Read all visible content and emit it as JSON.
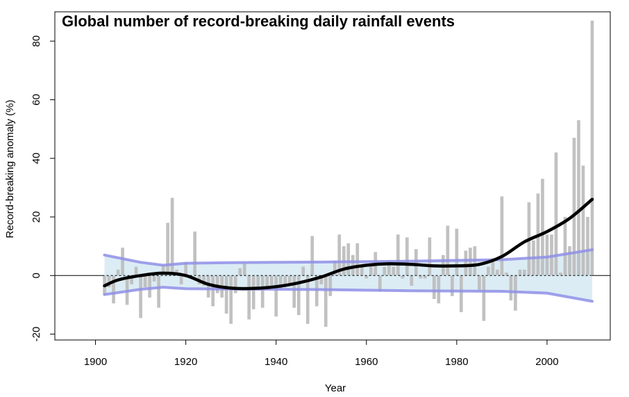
{
  "chart_data": {
    "type": "bar",
    "title": "Global number of record-breaking daily rainfall events",
    "xlabel": "Year",
    "ylabel": "Record-breaking anomaly (%)",
    "xlim": [
      1891,
      2014
    ],
    "ylim": [
      -22,
      90
    ],
    "xticks": [
      1900,
      1920,
      1940,
      1960,
      1980,
      2000
    ],
    "yticks": [
      -20,
      0,
      20,
      40,
      60,
      80
    ],
    "grid": false,
    "legend": "none",
    "years": [
      1902,
      1903,
      1904,
      1905,
      1906,
      1907,
      1908,
      1909,
      1910,
      1911,
      1912,
      1913,
      1914,
      1915,
      1916,
      1917,
      1918,
      1919,
      1920,
      1921,
      1922,
      1923,
      1924,
      1925,
      1926,
      1927,
      1928,
      1929,
      1930,
      1931,
      1932,
      1933,
      1934,
      1935,
      1936,
      1937,
      1938,
      1939,
      1940,
      1941,
      1942,
      1943,
      1944,
      1945,
      1946,
      1947,
      1948,
      1949,
      1950,
      1951,
      1952,
      1953,
      1954,
      1955,
      1956,
      1957,
      1958,
      1959,
      1960,
      1961,
      1962,
      1963,
      1964,
      1965,
      1966,
      1967,
      1968,
      1969,
      1970,
      1971,
      1972,
      1973,
      1974,
      1975,
      1976,
      1977,
      1978,
      1979,
      1980,
      1981,
      1982,
      1983,
      1984,
      1985,
      1986,
      1987,
      1988,
      1989,
      1990,
      1991,
      1992,
      1993,
      1994,
      1995,
      1996,
      1997,
      1998,
      1999,
      2000,
      2001,
      2002,
      2003,
      2004,
      2005,
      2006,
      2007,
      2008,
      2009,
      2010
    ],
    "series": [
      {
        "values": [
          -6.5,
          -4,
          -9.5,
          2,
          9.5,
          -10,
          -3,
          3,
          -14.5,
          -4,
          -7.5,
          -2,
          -11,
          3.5,
          18,
          26.5,
          2,
          -3,
          4.5,
          -1,
          15,
          -3,
          -3.5,
          -7.5,
          -10.5,
          -6,
          -7.5,
          -13,
          -16.5,
          -6,
          2.5,
          4,
          -15,
          -11.5,
          -4,
          -11,
          -4.5,
          -4,
          -14,
          -4.5,
          -4,
          -3,
          -11,
          -13.5,
          3,
          -16.5,
          13.5,
          -10.5,
          -3,
          -17.5,
          -7,
          5,
          14,
          10,
          11,
          7,
          11,
          3,
          -1,
          4,
          8,
          -5.5,
          3,
          5,
          3,
          14,
          -1,
          13,
          -3.5,
          9,
          -1,
          -1,
          13,
          -8,
          -9.5,
          7,
          17,
          -7,
          16,
          -12.5,
          8.5,
          9.5,
          10,
          -5,
          -15.5,
          3,
          5.5,
          2,
          27,
          1,
          -8.5,
          -12,
          2,
          2,
          25,
          12,
          28,
          33,
          14,
          14,
          42,
          1,
          20,
          10,
          47,
          53,
          37.5,
          20,
          87
        ]
      }
    ],
    "trend": {
      "x": [
        1902,
        1905,
        1910,
        1915,
        1920,
        1925,
        1930,
        1935,
        1940,
        1945,
        1950,
        1955,
        1960,
        1965,
        1970,
        1975,
        1980,
        1985,
        1990,
        1995,
        2000,
        2005,
        2010
      ],
      "y": [
        -3.5,
        -1.5,
        0,
        0.8,
        0,
        -3,
        -4.3,
        -4.4,
        -3.8,
        -2.5,
        -0.5,
        2.2,
        3.5,
        4,
        3.8,
        3.3,
        3.3,
        3.8,
        6.5,
        11.5,
        15,
        19.5,
        26
      ]
    },
    "confidence_band": {
      "x": [
        1902,
        1910,
        1915,
        1920,
        1930,
        1950,
        1970,
        1990,
        2000,
        2010
      ],
      "upper": [
        7,
        4.5,
        3.5,
        4.2,
        4.4,
        4.6,
        4.9,
        5.4,
        6.3,
        8.8
      ],
      "lower": [
        -6.5,
        -4.7,
        -4,
        -4.5,
        -4.6,
        -4.8,
        -5.2,
        -5.4,
        -6.0,
        -8.8
      ]
    },
    "colors": {
      "bars": "#bebebe",
      "trend": "#000000",
      "band_fill": "#d5e9f2",
      "band_line": "#8f8fe8",
      "zero_line": "#000000"
    }
  }
}
